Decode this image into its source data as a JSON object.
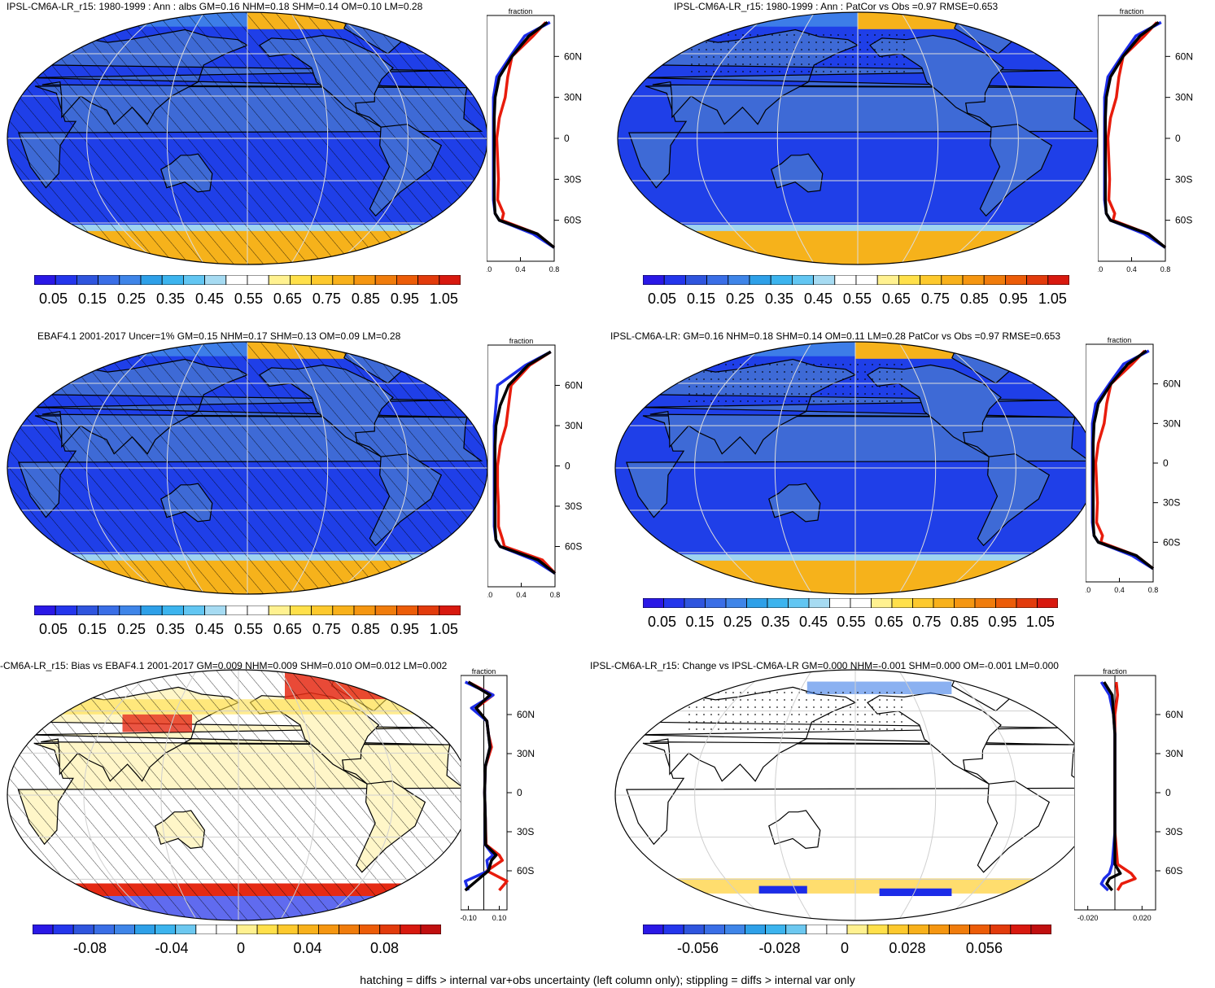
{
  "footer": "hatching = diffs > internal var+obs uncertainty (left column only); stippling = diffs > internal var only",
  "colors": {
    "ocean": "#1f3fe8",
    "land": "#3e6ad6",
    "ice": "#f6b21b",
    "positive": "#e52a14",
    "negative": "#1b33e0",
    "grid": "#e8e8e8",
    "line_model": "#e81c0c",
    "line_obs": "#1c2ce8",
    "line_mean": "#000000"
  },
  "zonal_common": {
    "top_label": "fraction",
    "y_ticks": [
      "60N",
      "30N",
      "0",
      "30S",
      "60S"
    ]
  },
  "panels": [
    {
      "id": "p1",
      "title": "IPSL-CM6A-LR_r15: 1980-1999 : Ann : albs GM=0.16 NHM=0.18 SHM=0.14 OM=0.10 LM=0.28",
      "type": "abs",
      "hatched": true,
      "colorbar_labels": [
        "0.05",
        "0.15",
        "0.25",
        "0.35",
        "0.45",
        "0.55",
        "0.65",
        "0.75",
        "0.85",
        "0.95",
        "1.05"
      ],
      "zonal_x_ticks": [
        "0.0",
        "0.4",
        "0.8"
      ]
    },
    {
      "id": "p2",
      "title": "IPSL-CM6A-LR_r15: 1980-1999 : Ann : PatCor vs Obs =0.97 RMSE=0.653",
      "type": "abs",
      "hatched": false,
      "colorbar_labels": [
        "0.05",
        "0.15",
        "0.25",
        "0.35",
        "0.45",
        "0.55",
        "0.65",
        "0.75",
        "0.85",
        "0.95",
        "1.05"
      ],
      "zonal_x_ticks": [
        "0.0",
        "0.4",
        "0.8"
      ]
    },
    {
      "id": "p3",
      "title": "EBAF4.1 2001-2017 Uncer=1% GM=0.15 NHM=0.17 SHM=0.13 OM=0.09 LM=0.28",
      "type": "abs",
      "hatched": true,
      "colorbar_labels": [
        "0.05",
        "0.15",
        "0.25",
        "0.35",
        "0.45",
        "0.55",
        "0.65",
        "0.75",
        "0.85",
        "0.95",
        "1.05"
      ],
      "zonal_x_ticks": [
        "0.0",
        "0.4",
        "0.8"
      ]
    },
    {
      "id": "p4",
      "title": "IPSL-CM6A-LR: GM=0.16 NHM=0.18 SHM=0.14 OM=0.11 LM=0.28 PatCor vs Obs =0.97 RMSE=0.653",
      "type": "abs",
      "hatched": false,
      "colorbar_labels": [
        "0.05",
        "0.15",
        "0.25",
        "0.35",
        "0.45",
        "0.55",
        "0.65",
        "0.75",
        "0.85",
        "0.95",
        "1.05"
      ],
      "zonal_x_ticks": [
        "0.0",
        "0.4",
        "0.8"
      ]
    },
    {
      "id": "p5",
      "title": "-CM6A-LR_r15: Bias vs EBAF4.1 2001-2017 GM=0.009 NHM=0.009 SHM=0.010 OM=0.012 LM=0.002",
      "type": "bias",
      "hatched": true,
      "colorbar_labels": [
        "-0.08",
        "-0.04",
        "0",
        "0.04",
        "0.08"
      ],
      "zonal_x_ticks": [
        "-0.10",
        "0.10"
      ]
    },
    {
      "id": "p6",
      "title": "IPSL-CM6A-LR_r15: Change vs IPSL-CM6A-LR GM=0.000 NHM=-0.001 SHM=0.000 OM=-0.001 LM=0.000",
      "type": "change",
      "hatched": false,
      "colorbar_labels": [
        "-0.056",
        "-0.028",
        "0",
        "0.028",
        "0.056"
      ],
      "zonal_x_ticks": [
        "-0.020",
        "0.020"
      ]
    }
  ],
  "chart_data": [
    {
      "type": "line",
      "title": "IPSL-CM6A-LR_r15: 1980-1999 : Ann : albs GM=0.16 NHM=0.18 SHM=0.14 OM=0.10 LM=0.28",
      "xlabel": "fraction",
      "ylabel": "",
      "xlim": [
        0.0,
        0.8
      ],
      "ylim": [
        -90,
        90
      ],
      "series": [
        {
          "lat": [
            85,
            75,
            60,
            45,
            30,
            15,
            0,
            -15,
            -30,
            -45,
            -55,
            -60,
            -70,
            -80
          ],
          "values": [
            0.7,
            0.55,
            0.3,
            0.25,
            0.22,
            0.15,
            0.12,
            0.13,
            0.14,
            0.13,
            0.2,
            0.18,
            0.6,
            0.8
          ]
        },
        {
          "lat": [
            85,
            75,
            60,
            45,
            30,
            15,
            0,
            -15,
            -30,
            -45,
            -55,
            -60,
            -70,
            -80
          ],
          "values": [
            0.75,
            0.45,
            0.28,
            0.12,
            0.08,
            0.08,
            0.08,
            0.08,
            0.08,
            0.08,
            0.1,
            0.15,
            0.55,
            0.8
          ]
        },
        {
          "lat": [
            85,
            75,
            60,
            45,
            30,
            15,
            0,
            -15,
            -30,
            -45,
            -55,
            -60,
            -70,
            -80
          ],
          "values": [
            0.72,
            0.5,
            0.3,
            0.15,
            0.1,
            0.09,
            0.09,
            0.09,
            0.09,
            0.09,
            0.1,
            0.15,
            0.6,
            0.8
          ]
        }
      ]
    },
    {
      "type": "line",
      "title": "IPSL-CM6A-LR_r15: 1980-1999 : Ann : PatCor vs Obs =0.97 RMSE=0.653",
      "xlabel": "fraction",
      "ylabel": "",
      "xlim": [
        0.0,
        0.8
      ],
      "ylim": [
        -90,
        90
      ],
      "series": [
        {
          "lat": [
            85,
            75,
            60,
            45,
            30,
            15,
            0,
            -15,
            -30,
            -45,
            -55,
            -60,
            -70,
            -80
          ],
          "values": [
            0.7,
            0.55,
            0.3,
            0.25,
            0.22,
            0.15,
            0.12,
            0.13,
            0.14,
            0.13,
            0.2,
            0.18,
            0.6,
            0.8
          ]
        },
        {
          "lat": [
            85,
            75,
            60,
            45,
            30,
            15,
            0,
            -15,
            -30,
            -45,
            -55,
            -60,
            -70,
            -80
          ],
          "values": [
            0.75,
            0.45,
            0.28,
            0.12,
            0.08,
            0.08,
            0.08,
            0.08,
            0.08,
            0.08,
            0.1,
            0.15,
            0.55,
            0.8
          ]
        },
        {
          "lat": [
            85,
            75,
            60,
            45,
            30,
            15,
            0,
            -15,
            -30,
            -45,
            -55,
            -60,
            -70,
            -80
          ],
          "values": [
            0.72,
            0.5,
            0.3,
            0.15,
            0.1,
            0.09,
            0.09,
            0.09,
            0.09,
            0.09,
            0.1,
            0.15,
            0.6,
            0.8
          ]
        }
      ]
    },
    {
      "type": "line",
      "title": "EBAF4.1 2001-2017 Uncer=1% GM=0.15 NHM=0.17 SHM=0.13 OM=0.09 LM=0.28",
      "xlabel": "fraction",
      "ylabel": "",
      "xlim": [
        0.0,
        0.8
      ],
      "ylim": [
        -90,
        90
      ],
      "series": [
        {
          "lat": [
            85,
            75,
            60,
            45,
            30,
            15,
            0,
            -15,
            -30,
            -45,
            -55,
            -60,
            -70,
            -80
          ],
          "values": [
            0.75,
            0.5,
            0.28,
            0.25,
            0.22,
            0.15,
            0.12,
            0.12,
            0.13,
            0.13,
            0.18,
            0.2,
            0.65,
            0.8
          ]
        },
        {
          "lat": [
            85,
            75,
            60,
            45,
            30,
            15,
            0,
            -15,
            -30,
            -45,
            -55,
            -60,
            -70,
            -80
          ],
          "values": [
            0.75,
            0.45,
            0.12,
            0.1,
            0.08,
            0.08,
            0.08,
            0.08,
            0.08,
            0.08,
            0.1,
            0.15,
            0.55,
            0.8
          ]
        },
        {
          "lat": [
            85,
            75,
            60,
            45,
            30,
            15,
            0,
            -15,
            -30,
            -45,
            -55,
            -60,
            -70,
            -80
          ],
          "values": [
            0.75,
            0.48,
            0.25,
            0.15,
            0.1,
            0.09,
            0.09,
            0.09,
            0.09,
            0.09,
            0.1,
            0.15,
            0.6,
            0.8
          ]
        }
      ]
    },
    {
      "type": "line",
      "title": "IPSL-CM6A-LR: GM=0.16 NHM=0.18 SHM=0.14 OM=0.11 LM=0.28 PatCor vs Obs =0.97 RMSE=0.653",
      "xlabel": "fraction",
      "ylabel": "",
      "xlim": [
        0.0,
        0.8
      ],
      "ylim": [
        -90,
        90
      ],
      "series": [
        {
          "lat": [
            85,
            75,
            60,
            45,
            30,
            15,
            0,
            -15,
            -30,
            -45,
            -55,
            -60,
            -70,
            -80
          ],
          "values": [
            0.7,
            0.55,
            0.3,
            0.25,
            0.22,
            0.15,
            0.12,
            0.13,
            0.14,
            0.13,
            0.2,
            0.18,
            0.6,
            0.8
          ]
        },
        {
          "lat": [
            85,
            75,
            60,
            45,
            30,
            15,
            0,
            -15,
            -30,
            -45,
            -55,
            -60,
            -70,
            -80
          ],
          "values": [
            0.75,
            0.45,
            0.28,
            0.12,
            0.08,
            0.08,
            0.08,
            0.08,
            0.08,
            0.08,
            0.1,
            0.15,
            0.55,
            0.8
          ]
        },
        {
          "lat": [
            85,
            75,
            60,
            45,
            30,
            15,
            0,
            -15,
            -30,
            -45,
            -55,
            -60,
            -70,
            -80
          ],
          "values": [
            0.72,
            0.5,
            0.3,
            0.15,
            0.1,
            0.09,
            0.09,
            0.09,
            0.09,
            0.09,
            0.1,
            0.15,
            0.6,
            0.8
          ]
        }
      ]
    },
    {
      "type": "line",
      "title": "-CM6A-LR_r15: Bias vs EBAF4.1 2001-2017 GM=0.009 NHM=0.009 SHM=0.010 OM=0.012 LM=0.002",
      "xlabel": "fraction",
      "ylabel": "",
      "xlim": [
        -0.15,
        0.15
      ],
      "ylim": [
        -90,
        90
      ],
      "series": [
        {
          "lat": [
            85,
            75,
            65,
            55,
            45,
            35,
            20,
            0,
            -20,
            -40,
            -48,
            -52,
            -60,
            -68,
            -75
          ],
          "values": [
            -0.1,
            0.06,
            -0.05,
            0.02,
            0.03,
            0.05,
            0.01,
            0.005,
            0.01,
            0.015,
            0.1,
            0.12,
            0.02,
            0.15,
            0.1
          ]
        },
        {
          "lat": [
            85,
            75,
            65,
            55,
            45,
            35,
            20,
            0,
            -20,
            -40,
            -48,
            -52,
            -60,
            -68,
            -75
          ],
          "values": [
            -0.12,
            0.06,
            -0.08,
            0.02,
            0.03,
            0.04,
            0.01,
            0.005,
            0.01,
            0.01,
            0.06,
            0.02,
            0.03,
            -0.12,
            -0.1
          ]
        },
        {
          "lat": [
            85,
            75,
            65,
            55,
            45,
            35,
            20,
            0,
            -20,
            -40,
            -48,
            -52,
            -60,
            -68,
            -75
          ],
          "values": [
            -0.1,
            0.04,
            -0.05,
            0.02,
            0.03,
            0.04,
            0.01,
            0.005,
            0.01,
            0.012,
            0.08,
            0.05,
            0.03,
            -0.05,
            -0.12
          ]
        }
      ]
    },
    {
      "type": "line",
      "title": "IPSL-CM6A-LR_r15: Change vs IPSL-CM6A-LR GM=0.000 NHM=-0.001 SHM=0.000 OM=-0.001 LM=0.000",
      "xlabel": "fraction",
      "ylabel": "",
      "xlim": [
        -0.03,
        0.03
      ],
      "ylim": [
        -90,
        90
      ],
      "series": [
        {
          "lat": [
            85,
            75,
            60,
            45,
            30,
            0,
            -30,
            -55,
            -62,
            -66,
            -70,
            -75
          ],
          "values": [
            0.001,
            0.002,
            0.0,
            0.0,
            0.0,
            0.0,
            0.0,
            0.002,
            0.012,
            0.015,
            0.005,
            0.002
          ]
        },
        {
          "lat": [
            85,
            75,
            60,
            45,
            30,
            0,
            -30,
            -55,
            -62,
            -66,
            -70,
            -75
          ],
          "values": [
            -0.01,
            -0.004,
            -0.001,
            0.0,
            0.0,
            0.0,
            0.0,
            -0.002,
            -0.004,
            -0.008,
            -0.01,
            -0.005
          ]
        },
        {
          "lat": [
            85,
            75,
            60,
            45,
            30,
            0,
            -30,
            -55,
            -62,
            -66,
            -70,
            -75
          ],
          "values": [
            -0.008,
            -0.002,
            -0.001,
            0.0,
            0.0,
            0.0,
            0.0,
            0.0,
            0.004,
            -0.004,
            -0.006,
            -0.002
          ]
        }
      ]
    }
  ]
}
